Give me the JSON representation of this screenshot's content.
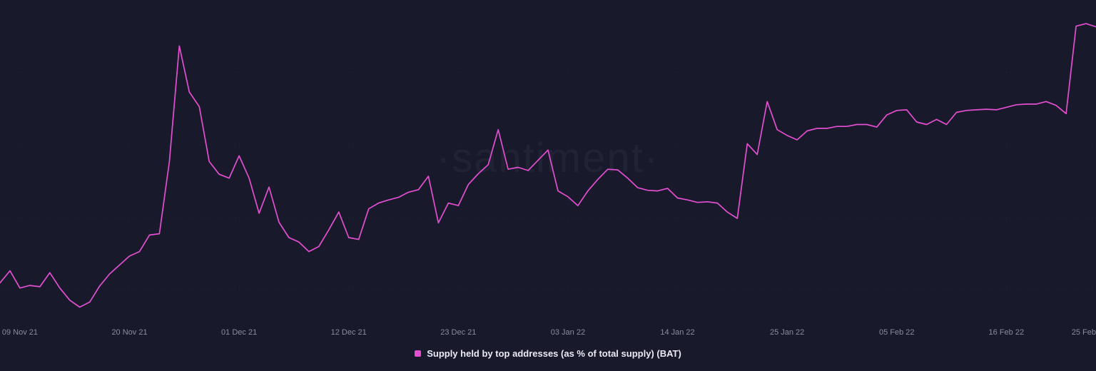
{
  "page": {
    "background_color": "#181a2c"
  },
  "watermark": "·santiment·",
  "legend": {
    "marker_color": "#e44ed0",
    "label": "Supply held by top addresses (as % of total supply) (BAT)"
  },
  "chart_data": {
    "type": "line",
    "title": "Supply held by top addresses (as % of total supply) (BAT)",
    "xlabel": "",
    "ylabel": "",
    "grid": "faint dotted",
    "legend_position": "bottom-center",
    "y_axis_labels_visible": false,
    "ylim": [
      63.1,
      68.15
    ],
    "x_start_date": "2021-11-07",
    "x_frequency": "daily",
    "x_ticks": [
      {
        "label": "09 Nov 21",
        "day_index": 2
      },
      {
        "label": "20 Nov 21",
        "day_index": 13
      },
      {
        "label": "01 Dec 21",
        "day_index": 24
      },
      {
        "label": "12 Dec 21",
        "day_index": 35
      },
      {
        "label": "23 Dec 21",
        "day_index": 46
      },
      {
        "label": "03 Jan 22",
        "day_index": 57
      },
      {
        "label": "14 Jan 22",
        "day_index": 68
      },
      {
        "label": "25 Jan 22",
        "day_index": 79
      },
      {
        "label": "05 Feb 22",
        "day_index": 90
      },
      {
        "label": "16 Feb 22",
        "day_index": 101
      },
      {
        "label": "25 Feb",
        "day_index": 110
      }
    ],
    "series": [
      {
        "name": "Supply held by top addresses (as % of total supply) (BAT)",
        "color": "#e44ed0",
        "unit": "%",
        "values": [
          63.72,
          63.91,
          63.64,
          63.68,
          63.66,
          63.88,
          63.64,
          63.45,
          63.34,
          63.42,
          63.67,
          63.86,
          64.0,
          64.14,
          64.21,
          64.47,
          64.49,
          65.62,
          67.43,
          66.71,
          66.48,
          65.62,
          65.42,
          65.36,
          65.71,
          65.36,
          64.81,
          65.22,
          64.67,
          64.43,
          64.36,
          64.21,
          64.29,
          64.55,
          64.83,
          64.43,
          64.4,
          64.88,
          64.97,
          65.02,
          65.06,
          65.14,
          65.18,
          65.39,
          64.66,
          64.97,
          64.93,
          65.26,
          65.43,
          65.57,
          66.12,
          65.5,
          65.53,
          65.48,
          65.64,
          65.8,
          65.16,
          65.07,
          64.93,
          65.16,
          65.34,
          65.5,
          65.49,
          65.36,
          65.21,
          65.17,
          65.16,
          65.2,
          65.05,
          65.02,
          64.98,
          64.99,
          64.97,
          64.83,
          64.73,
          65.9,
          65.73,
          66.56,
          66.12,
          66.03,
          65.96,
          66.1,
          66.14,
          66.14,
          66.17,
          66.17,
          66.2,
          66.2,
          66.16,
          66.35,
          66.42,
          66.43,
          66.24,
          66.2,
          66.28,
          66.2,
          66.39,
          66.42,
          66.43,
          66.44,
          66.43,
          66.47,
          66.51,
          66.52,
          66.52,
          66.56,
          66.5,
          66.37,
          67.74,
          67.78,
          67.73
        ]
      }
    ]
  }
}
